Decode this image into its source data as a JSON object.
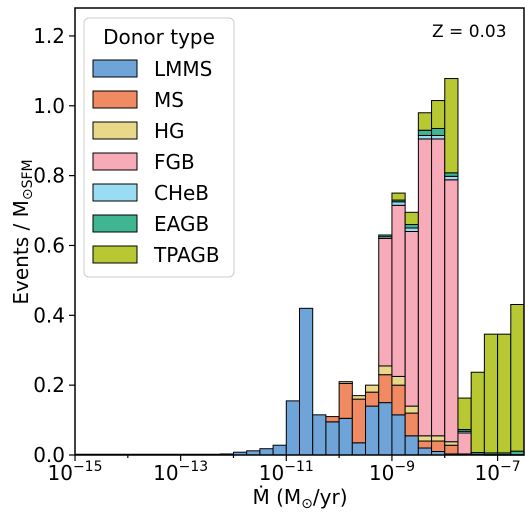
{
  "chart_data": {
    "type": "bar",
    "subtype": "stacked-histogram",
    "x_scale": "log",
    "xlim": [
      "1e-15",
      "1e-6.5"
    ],
    "ylim": [
      0,
      1.28
    ],
    "xlabel_main": "Ṁ (M",
    "xlabel_sub": "⊙",
    "xlabel_tail": "/yr)",
    "ylabel_main": "Events / M",
    "ylabel_sub": "⊙SFM",
    "annotation": "Z = 0.03",
    "x_tick_labels": [
      {
        "exp": -15,
        "base": "10",
        "sup": "−15"
      },
      {
        "exp": -13,
        "base": "10",
        "sup": "−13"
      },
      {
        "exp": -11,
        "base": "10",
        "sup": "−11"
      },
      {
        "exp": -9,
        "base": "10",
        "sup": "−9"
      },
      {
        "exp": -7,
        "base": "10",
        "sup": "−7"
      }
    ],
    "y_ticks": [
      0.0,
      0.2,
      0.4,
      0.6,
      0.8,
      1.0,
      1.2
    ],
    "y_tick_labels": [
      "0.0",
      "0.2",
      "0.4",
      "0.6",
      "0.8",
      "1.0",
      "1.2"
    ],
    "legend_title": "Donor type",
    "legend_position": "top-left",
    "bin_width_dex": 0.25,
    "bins_log_start": [
      -12.25,
      -12.0,
      -11.75,
      -11.5,
      -11.25,
      -11.0,
      -10.75,
      -10.5,
      -10.25,
      -10.0,
      -9.75,
      -9.5,
      -9.25,
      -9.0,
      -8.75,
      -8.5,
      -8.25,
      -8.0,
      -7.75,
      -7.5,
      -7.25,
      -7.0,
      -6.75
    ],
    "series": [
      {
        "name": "LMMS",
        "color": "#6fa4d9",
        "values": [
          0.003,
          0.008,
          0.012,
          0.018,
          0.028,
          0.155,
          0.42,
          0.115,
          0.095,
          0.105,
          0.035,
          0.14,
          0.15,
          0.115,
          0.055,
          0.02,
          0.01,
          0.003,
          0.003,
          0.002,
          0.001,
          0.001,
          0.001
        ]
      },
      {
        "name": "MS",
        "color": "#f08a63",
        "values": [
          0.0,
          0.0,
          0.0,
          0.0,
          0.0,
          0.0,
          0.0,
          0.0,
          0.015,
          0.1,
          0.125,
          0.04,
          0.08,
          0.085,
          0.065,
          0.02,
          0.03,
          0.025,
          0.0,
          0.0,
          0.0,
          0.0,
          0.0
        ]
      },
      {
        "name": "HG",
        "color": "#e8d98a",
        "values": [
          0.0,
          0.0,
          0.0,
          0.0,
          0.0,
          0.0,
          0.0,
          0.0,
          0.0,
          0.005,
          0.01,
          0.02,
          0.025,
          0.025,
          0.02,
          0.015,
          0.015,
          0.01,
          0.0,
          0.0,
          0.0,
          0.0,
          0.0
        ]
      },
      {
        "name": "FGB",
        "color": "#f7aab8",
        "values": [
          0.0,
          0.0,
          0.0,
          0.0,
          0.0,
          0.0,
          0.0,
          0.0,
          0.0,
          0.0,
          0.0,
          0.0,
          0.365,
          0.49,
          0.5,
          0.85,
          0.85,
          0.75,
          0.06,
          0.0,
          0.0,
          0.0,
          0.0
        ]
      },
      {
        "name": "CHeB",
        "color": "#9bdcf5",
        "values": [
          0.0,
          0.0,
          0.0,
          0.0,
          0.0,
          0.0,
          0.0,
          0.0,
          0.0,
          0.0,
          0.0,
          0.0,
          0.005,
          0.01,
          0.01,
          0.01,
          0.01,
          0.01,
          0.005,
          0.0,
          0.0,
          0.0,
          0.0
        ]
      },
      {
        "name": "EAGB",
        "color": "#3fb591",
        "values": [
          0.0,
          0.0,
          0.0,
          0.0,
          0.0,
          0.0,
          0.0,
          0.0,
          0.0,
          0.0,
          0.0,
          0.0,
          0.005,
          0.005,
          0.01,
          0.015,
          0.02,
          0.01,
          0.005,
          0.005,
          0.005,
          0.005,
          0.01
        ]
      },
      {
        "name": "TPAGB",
        "color": "#b8c832",
        "values": [
          0.0,
          0.0,
          0.0,
          0.0,
          0.0,
          0.0,
          0.0,
          0.0,
          0.0,
          0.0,
          0.0,
          0.0,
          0.0,
          0.02,
          0.035,
          0.05,
          0.08,
          0.27,
          0.09,
          0.23,
          0.34,
          0.34,
          0.42
        ]
      }
    ]
  }
}
